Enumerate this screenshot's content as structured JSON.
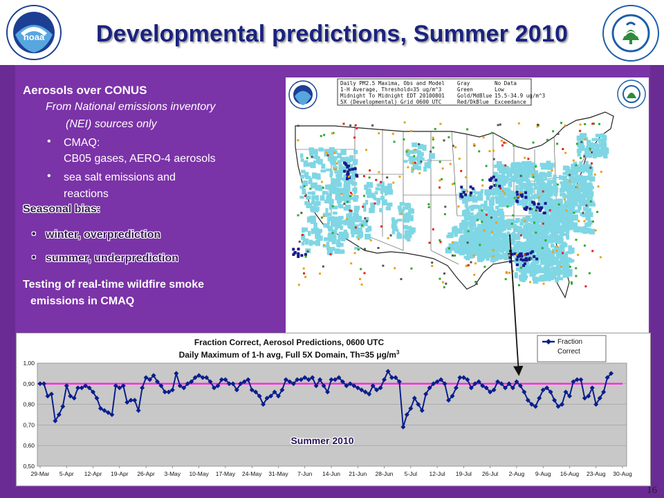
{
  "header": {
    "title": "Developmental predictions, Summer 2010"
  },
  "logos": {
    "left": {
      "name": "NOAA"
    },
    "right": {
      "name": "EPA",
      "ring_text": "UNITED STATES · ENVIRONMENTAL PROTECTION AGENCY"
    }
  },
  "left_text": {
    "heading": "Aerosols over CONUS",
    "sub_line1": "From National emissions inventory",
    "sub_line2": "(NEI) sources only",
    "bullet1_line1": "CMAQ:",
    "bullet1_line2": "CB05 gases, AERO-4 aerosols",
    "bullet2_line1": "sea salt emissions and",
    "bullet2_line2": "reactions",
    "seasonal_heading": "Seasonal bias:",
    "seasonal_items": [
      "winter, overprediction",
      "summer, underprediction"
    ],
    "testing_line1": "Testing of real-time wildfire smoke",
    "testing_line2": "emissions in CMAQ"
  },
  "map": {
    "info_left": [
      "Daily PM2.5 Maxima, Obs and Model",
      "1-H Average, Threshold=35 ug/m^3",
      "Midnight To Midnight EDT 20100801",
      "5X (Developmental) Grid 0600 UTC"
    ],
    "info_right": [
      [
        "Gray",
        "No Data"
      ],
      [
        "Green",
        "Low"
      ],
      [
        "Gold/MdBlue",
        "15.5-34.9 ug/m^3"
      ],
      [
        "Red/DkBlue",
        "Exceedance"
      ]
    ],
    "colors": {
      "model": "#7fd6e4",
      "exceed_model": "#1a1a8c",
      "obs_low": "#2eaa2e",
      "obs_mid": "#e8a317",
      "obs_exceed": "#e52020",
      "nodata": "#555555"
    }
  },
  "chart_data": {
    "type": "line",
    "title_line1": "Fraction Correct, Aerosol Predictions, 0600 UTC",
    "title_line2_prefix": "Daily Maximum of 1-h avg, Full 5X Domain, Th=35 ",
    "title_line2_unit": "μg/m",
    "title_line2_sup": "3",
    "legend": "Fraction Correct",
    "annotation": "Summer 2010",
    "ylim": [
      0.5,
      1.0
    ],
    "yticks": [
      "1,00",
      "0,90",
      "0,80",
      "0,70",
      "0,60",
      "0,50"
    ],
    "xticks": [
      "29-Mar",
      "5-Apr",
      "12-Apr",
      "19-Apr",
      "26-Apr",
      "3-May",
      "10-May",
      "17-May",
      "24-May",
      "31-May",
      "7-Jun",
      "14-Jun",
      "21-Jun",
      "28-Jun",
      "5-Jul",
      "12-Jul",
      "19-Jul",
      "26-Jul",
      "2-Aug",
      "9-Aug",
      "16-Aug",
      "23-Aug",
      "30-Aug"
    ],
    "reference_line": 0.9,
    "series": [
      {
        "color": "#0a1e8c",
        "values": [
          0.9,
          0.9,
          0.84,
          0.85,
          0.72,
          0.75,
          0.79,
          0.89,
          0.84,
          0.83,
          0.88,
          0.88,
          0.89,
          0.88,
          0.86,
          0.83,
          0.78,
          0.77,
          0.76,
          0.75,
          0.89,
          0.88,
          0.89,
          0.81,
          0.82,
          0.82,
          0.77,
          0.88,
          0.93,
          0.92,
          0.94,
          0.91,
          0.89,
          0.86,
          0.86,
          0.87,
          0.95,
          0.89,
          0.88,
          0.9,
          0.91,
          0.93,
          0.94,
          0.93,
          0.93,
          0.91,
          0.88,
          0.89,
          0.92,
          0.92,
          0.9,
          0.9,
          0.87,
          0.9,
          0.91,
          0.92,
          0.87,
          0.86,
          0.84,
          0.8,
          0.83,
          0.84,
          0.86,
          0.84,
          0.87,
          0.92,
          0.91,
          0.9,
          0.92,
          0.92,
          0.93,
          0.92,
          0.93,
          0.89,
          0.92,
          0.89,
          0.86,
          0.92,
          0.92,
          0.93,
          0.91,
          0.89,
          0.9,
          0.89,
          0.88,
          0.87,
          0.86,
          0.85,
          0.89,
          0.87,
          0.88,
          0.92,
          0.96,
          0.93,
          0.93,
          0.91,
          0.69,
          0.75,
          0.78,
          0.83,
          0.8,
          0.77,
          0.85,
          0.88,
          0.9,
          0.91,
          0.92,
          0.9,
          0.82,
          0.84,
          0.88,
          0.93,
          0.93,
          0.92,
          0.88,
          0.9,
          0.91,
          0.89,
          0.88,
          0.86,
          0.87,
          0.91,
          0.9,
          0.88,
          0.9,
          0.88,
          0.91,
          0.89,
          0.86,
          0.82,
          0.8,
          0.79,
          0.83,
          0.87,
          0.88,
          0.86,
          0.82,
          0.79,
          0.8,
          0.86,
          0.84,
          0.91,
          0.92,
          0.92,
          0.83,
          0.84,
          0.88,
          0.8,
          0.83,
          0.86,
          0.93,
          0.95
        ]
      }
    ]
  },
  "page_number": "16"
}
